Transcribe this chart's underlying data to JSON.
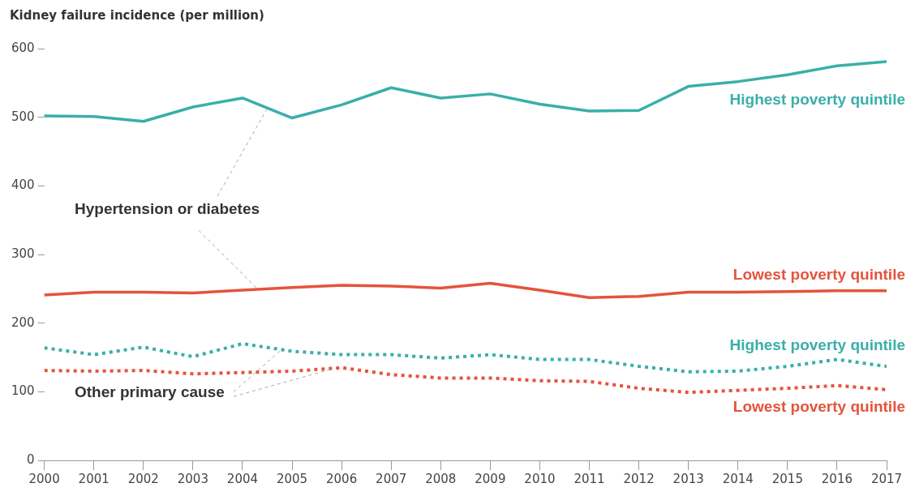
{
  "chart_data": {
    "type": "line",
    "ylabel": "Kidney failure incidence (per million)",
    "x": [
      2000,
      2001,
      2002,
      2003,
      2004,
      2005,
      2006,
      2007,
      2008,
      2009,
      2010,
      2011,
      2012,
      2013,
      2014,
      2015,
      2016,
      2017
    ],
    "xlim": [
      2000,
      2017
    ],
    "xticks": [
      2000,
      2001,
      2002,
      2003,
      2004,
      2005,
      2006,
      2007,
      2008,
      2009,
      2010,
      2011,
      2012,
      2013,
      2014,
      2015,
      2016,
      2017
    ],
    "ylim": [
      0,
      600
    ],
    "yticks": [
      0,
      100,
      200,
      300,
      400,
      500,
      600
    ],
    "grid": false,
    "legend": false,
    "marker": "none",
    "series": [
      {
        "name": "Highest poverty quintile",
        "color": "#3aafa9",
        "line_style": "solid",
        "values": [
          502,
          501,
          494,
          515,
          528,
          499,
          518,
          543,
          528,
          534,
          519,
          509,
          510,
          545,
          552,
          562,
          575,
          581
        ]
      },
      {
        "name": "Lowest poverty quintile",
        "color": "#e5533c",
        "line_style": "solid",
        "values": [
          241,
          245,
          245,
          244,
          248,
          252,
          255,
          254,
          251,
          258,
          248,
          237,
          239,
          245,
          245,
          246,
          247,
          247
        ]
      },
      {
        "name": "Highest poverty quintile",
        "color": "#3aafa9",
        "line_style": "dotted",
        "values": [
          164,
          154,
          165,
          151,
          170,
          159,
          154,
          154,
          149,
          154,
          147,
          147,
          137,
          129,
          130,
          137,
          147,
          137
        ]
      },
      {
        "name": "Lowest poverty quintile",
        "color": "#e5533c",
        "line_style": "dotted",
        "values": [
          131,
          130,
          131,
          126,
          128,
          130,
          135,
          125,
          120,
          120,
          116,
          115,
          105,
          99,
          102,
          105,
          109,
          103
        ]
      }
    ],
    "annotations": [
      {
        "text": "Hypertension or diabetes",
        "x": 2004.5,
        "y": 513
      },
      {
        "text": "Other primary cause",
        "x": 2004.8,
        "y": 162
      }
    ]
  }
}
